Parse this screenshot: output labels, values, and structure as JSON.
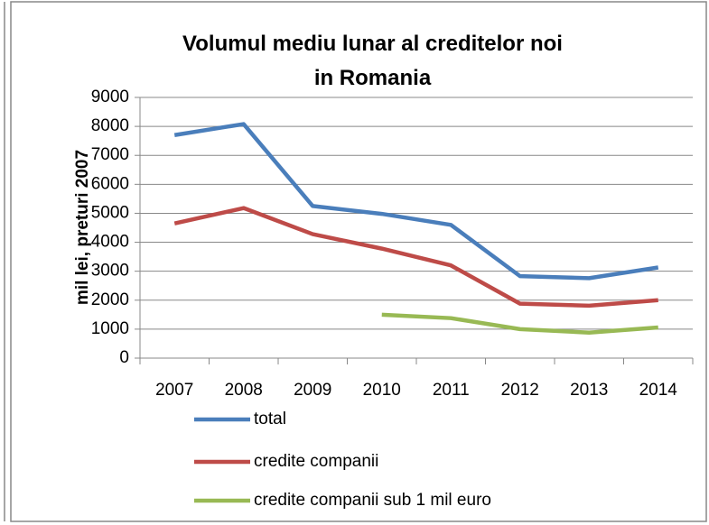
{
  "chart_data": {
    "type": "line",
    "title": "Volumul mediu lunar al creditelor noi in Romania",
    "ylabel": "mil lei, preturi 2007",
    "categories": [
      "2007",
      "2008",
      "2009",
      "2010",
      "2011",
      "2012",
      "2013",
      "2014"
    ],
    "series": [
      {
        "name": "total",
        "color": "#4a7ebb",
        "values": [
          7700,
          8080,
          5250,
          4980,
          4600,
          2830,
          2760,
          3130
        ]
      },
      {
        "name": "credite companii",
        "color": "#be4b48",
        "values": [
          4650,
          5180,
          4280,
          3780,
          3200,
          1880,
          1810,
          2000
        ]
      },
      {
        "name": "credite companii sub 1 mil euro",
        "color": "#98b954",
        "values": [
          null,
          null,
          null,
          1500,
          1380,
          1000,
          880,
          1060
        ]
      }
    ],
    "ylim": [
      0,
      9000
    ],
    "yticks": [
      0,
      1000,
      2000,
      3000,
      4000,
      5000,
      6000,
      7000,
      8000,
      9000
    ],
    "grid": true,
    "legend": "bottom"
  }
}
